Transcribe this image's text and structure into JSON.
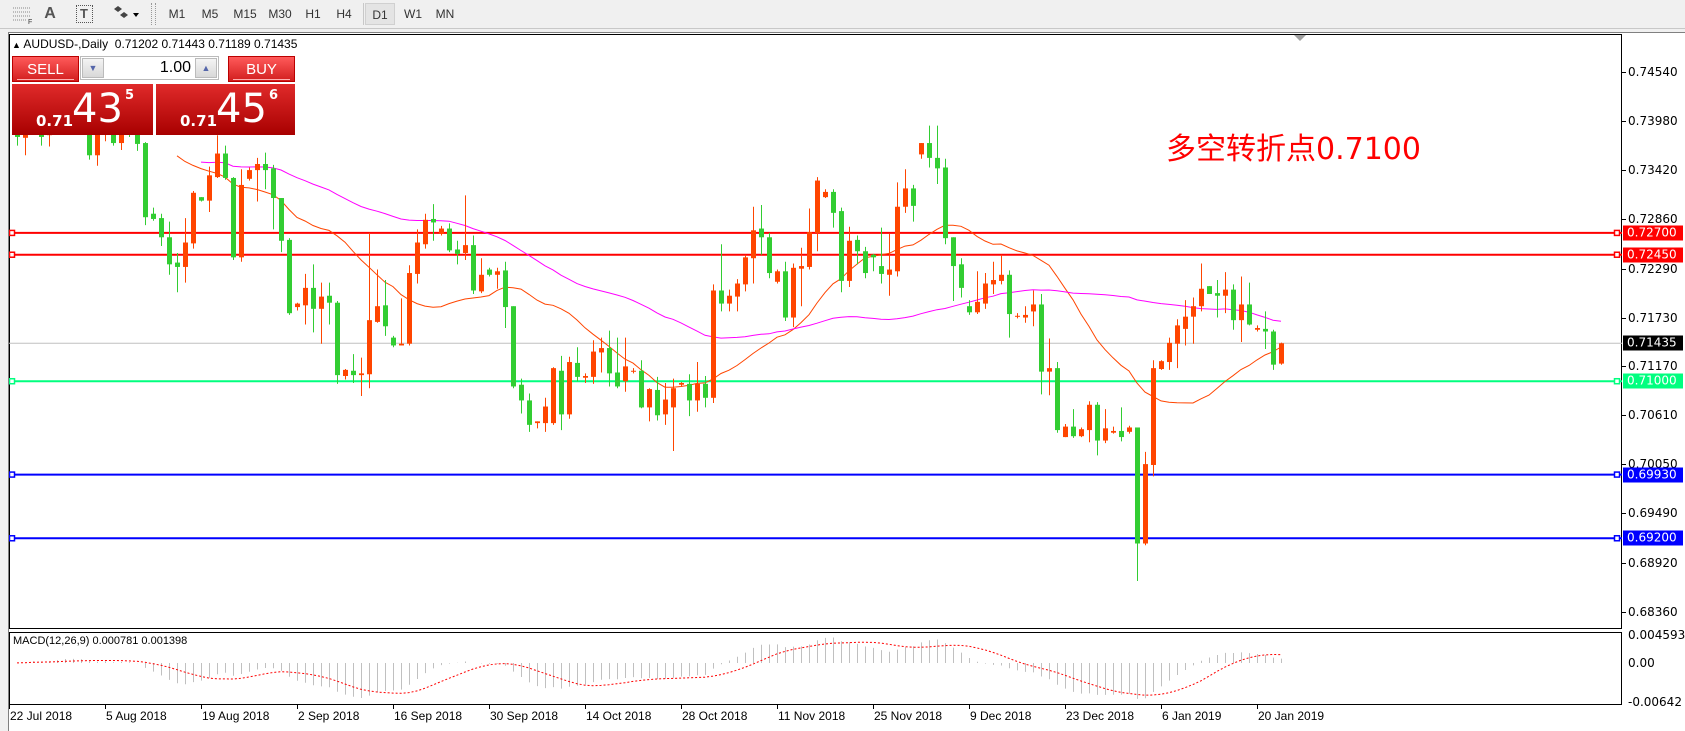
{
  "toolbar": {
    "tools": [
      {
        "icon": "fibonacci-retracement-icon"
      },
      {
        "icon": "text-icon",
        "label": "A"
      },
      {
        "icon": "text-label-icon",
        "label": "T"
      },
      {
        "icon": "arrows-icon"
      }
    ],
    "timeframes": [
      {
        "label": "M1"
      },
      {
        "label": "M5"
      },
      {
        "label": "M15"
      },
      {
        "label": "M30"
      },
      {
        "label": "H1"
      },
      {
        "label": "H4"
      },
      {
        "label": "D1",
        "active": true
      },
      {
        "label": "W1"
      },
      {
        "label": "MN"
      }
    ]
  },
  "header": {
    "symbol": "AUDUSD-,Daily",
    "ohlc": "0.71202 0.71443 0.71189 0.71435"
  },
  "trade_panel": {
    "sell_label": "SELL",
    "buy_label": "BUY",
    "lot": "1.00",
    "sell_price": {
      "prefix": "0.71",
      "big": "43",
      "sup": "5"
    },
    "buy_price": {
      "prefix": "0.71",
      "big": "45",
      "sup": "6"
    },
    "color": "#d21e1e"
  },
  "annotation": "多空转折点0.7100",
  "chart_data": {
    "type": "candlestick",
    "symbol": "AUDUSD-",
    "timeframe": "Daily",
    "ylim": [
      0.6816,
      0.7498
    ],
    "grid": false,
    "bull_color": "#ff4500",
    "bear_color": "#32cd32",
    "yticks": [
      "0.74540",
      "0.73980",
      "0.73420",
      "0.72860",
      "0.72290",
      "0.71730",
      "0.71170",
      "0.70610",
      "0.70050",
      "0.69490",
      "0.68920",
      "0.68360"
    ],
    "xticks": [
      "22 Jul 2018",
      "5 Aug 2018",
      "19 Aug 2018",
      "2 Sep 2018",
      "16 Sep 2018",
      "30 Sep 2018",
      "14 Oct 2018",
      "28 Oct 2018",
      "11 Nov 2018",
      "25 Nov 2018",
      "9 Dec 2018",
      "23 Dec 2018",
      "6 Jan 2019",
      "20 Jan 2019"
    ],
    "current_price": {
      "value": 0.71435,
      "label": "0.71435",
      "color": "#000000"
    },
    "hlines": [
      {
        "value": 0.727,
        "label": "0.72700",
        "color": "#ff0000"
      },
      {
        "value": 0.7245,
        "label": "0.72450",
        "color": "#ff0000"
      },
      {
        "value": 0.71,
        "label": "0.71000",
        "color": "#00ff7f"
      },
      {
        "value": 0.6993,
        "label": "0.69930",
        "color": "#0000ff"
      },
      {
        "value": 0.692,
        "label": "0.69200",
        "color": "#0000ff"
      }
    ],
    "moving_averages": [
      {
        "color": "#ff4500"
      },
      {
        "color": "#ff00ff"
      }
    ],
    "candles_ohlc": [
      [
        0.7392,
        0.74,
        0.737,
        0.738
      ],
      [
        0.7379,
        0.7398,
        0.7359,
        0.739
      ],
      [
        0.739,
        0.7415,
        0.7385,
        0.7405
      ],
      [
        0.7405,
        0.741,
        0.737,
        0.738
      ],
      [
        0.7382,
        0.74,
        0.7369,
        0.7395
      ],
      [
        0.7395,
        0.742,
        0.739,
        0.7412
      ],
      [
        0.7412,
        0.743,
        0.74,
        0.7418
      ],
      [
        0.7418,
        0.7428,
        0.7395,
        0.7402
      ],
      [
        0.7402,
        0.7412,
        0.7385,
        0.7395
      ],
      [
        0.7395,
        0.74,
        0.7354,
        0.7359
      ],
      [
        0.7359,
        0.739,
        0.7347,
        0.7385
      ],
      [
        0.7385,
        0.741,
        0.7375,
        0.74
      ],
      [
        0.74,
        0.7408,
        0.737,
        0.7373
      ],
      [
        0.7373,
        0.74,
        0.7365,
        0.7392
      ],
      [
        0.7392,
        0.7405,
        0.738,
        0.7385
      ],
      [
        0.7385,
        0.7392,
        0.7364,
        0.7372
      ],
      [
        0.7373,
        0.7374,
        0.7279,
        0.7288
      ],
      [
        0.7292,
        0.7299,
        0.7284,
        0.7286
      ],
      [
        0.7287,
        0.7292,
        0.7255,
        0.7265
      ],
      [
        0.7265,
        0.7283,
        0.7222,
        0.7234
      ],
      [
        0.7236,
        0.7247,
        0.7202,
        0.7231
      ],
      [
        0.7231,
        0.7287,
        0.7213,
        0.7259
      ],
      [
        0.7258,
        0.7318,
        0.7252,
        0.7316
      ],
      [
        0.7311,
        0.7311,
        0.7306,
        0.7307
      ],
      [
        0.7307,
        0.7346,
        0.7294,
        0.7336
      ],
      [
        0.7334,
        0.7382,
        0.7333,
        0.7361
      ],
      [
        0.7361,
        0.737,
        0.7331,
        0.7333
      ],
      [
        0.7333,
        0.7334,
        0.7239,
        0.7242
      ],
      [
        0.7242,
        0.7343,
        0.7237,
        0.7325
      ],
      [
        0.7332,
        0.7345,
        0.733,
        0.7342
      ],
      [
        0.7342,
        0.7356,
        0.7306,
        0.7349
      ],
      [
        0.7349,
        0.7362,
        0.732,
        0.7342
      ],
      [
        0.7344,
        0.7348,
        0.7274,
        0.731
      ],
      [
        0.731,
        0.731,
        0.7248,
        0.7261
      ],
      [
        0.7262,
        0.7264,
        0.7176,
        0.7178
      ],
      [
        0.7185,
        0.719,
        0.7181,
        0.7189
      ],
      [
        0.7187,
        0.7223,
        0.7165,
        0.7207
      ],
      [
        0.7207,
        0.7234,
        0.7156,
        0.7183
      ],
      [
        0.7183,
        0.7213,
        0.7143,
        0.7197
      ],
      [
        0.7198,
        0.7213,
        0.7165,
        0.719
      ],
      [
        0.719,
        0.7192,
        0.7097,
        0.7107
      ],
      [
        0.7106,
        0.7114,
        0.7102,
        0.7113
      ],
      [
        0.7112,
        0.7131,
        0.7098,
        0.7107
      ],
      [
        0.7107,
        0.7127,
        0.7083,
        0.7109
      ],
      [
        0.7108,
        0.727,
        0.7092,
        0.717
      ],
      [
        0.7168,
        0.7228,
        0.7167,
        0.7186
      ],
      [
        0.7187,
        0.7216,
        0.7152,
        0.7163
      ],
      [
        0.715,
        0.7152,
        0.7139,
        0.7141
      ],
      [
        0.7141,
        0.7195,
        0.7141,
        0.7143
      ],
      [
        0.7143,
        0.7233,
        0.7141,
        0.7224
      ],
      [
        0.7223,
        0.7274,
        0.7212,
        0.7259
      ],
      [
        0.7257,
        0.7292,
        0.7252,
        0.7285
      ],
      [
        0.7286,
        0.7303,
        0.7261,
        0.7282
      ],
      [
        0.7269,
        0.7278,
        0.7267,
        0.7275
      ],
      [
        0.7275,
        0.7281,
        0.7248,
        0.725
      ],
      [
        0.7251,
        0.7261,
        0.7234,
        0.7246
      ],
      [
        0.7247,
        0.7313,
        0.7239,
        0.7256
      ],
      [
        0.7256,
        0.7267,
        0.72,
        0.7204
      ],
      [
        0.7203,
        0.7241,
        0.7201,
        0.7222
      ],
      [
        0.7228,
        0.723,
        0.722,
        0.7222
      ],
      [
        0.7222,
        0.723,
        0.7206,
        0.7226
      ],
      [
        0.7227,
        0.7237,
        0.7161,
        0.7185
      ],
      [
        0.7186,
        0.7186,
        0.7092,
        0.7094
      ],
      [
        0.7096,
        0.7103,
        0.7063,
        0.7078
      ],
      [
        0.7078,
        0.7086,
        0.7042,
        0.705
      ],
      [
        0.7052,
        0.7054,
        0.7046,
        0.7054
      ],
      [
        0.7052,
        0.7081,
        0.7042,
        0.7071
      ],
      [
        0.7052,
        0.7116,
        0.705,
        0.7115
      ],
      [
        0.7112,
        0.7129,
        0.7044,
        0.7062
      ],
      [
        0.7062,
        0.7128,
        0.7057,
        0.7122
      ],
      [
        0.7121,
        0.7139,
        0.71,
        0.7105
      ],
      [
        0.7104,
        0.7109,
        0.7098,
        0.7106
      ],
      [
        0.7105,
        0.7147,
        0.7097,
        0.7134
      ],
      [
        0.7133,
        0.715,
        0.711,
        0.7138
      ],
      [
        0.7138,
        0.7158,
        0.7094,
        0.7109
      ],
      [
        0.711,
        0.715,
        0.7092,
        0.7094
      ],
      [
        0.71,
        0.715,
        0.7088,
        0.7117
      ],
      [
        0.7112,
        0.7115,
        0.7109,
        0.7112
      ],
      [
        0.7112,
        0.7124,
        0.7069,
        0.707
      ],
      [
        0.707,
        0.7092,
        0.7054,
        0.7091
      ],
      [
        0.709,
        0.7105,
        0.7055,
        0.7061
      ],
      [
        0.7062,
        0.7098,
        0.705,
        0.7079
      ],
      [
        0.707,
        0.7103,
        0.702,
        0.7092
      ],
      [
        0.7096,
        0.7099,
        0.7094,
        0.7098
      ],
      [
        0.7097,
        0.7108,
        0.706,
        0.7078
      ],
      [
        0.7078,
        0.7122,
        0.7065,
        0.7097
      ],
      [
        0.7097,
        0.7106,
        0.707,
        0.7081
      ],
      [
        0.7081,
        0.7211,
        0.7075,
        0.7204
      ],
      [
        0.7204,
        0.7257,
        0.718,
        0.7189
      ],
      [
        0.7189,
        0.7205,
        0.718,
        0.7198
      ],
      [
        0.7197,
        0.7217,
        0.718,
        0.7212
      ],
      [
        0.7211,
        0.7245,
        0.7203,
        0.7242
      ],
      [
        0.7241,
        0.73,
        0.7212,
        0.7273
      ],
      [
        0.7275,
        0.7302,
        0.7245,
        0.7265
      ],
      [
        0.7265,
        0.727,
        0.7218,
        0.7224
      ],
      [
        0.7214,
        0.7228,
        0.7212,
        0.7226
      ],
      [
        0.7226,
        0.7237,
        0.7169,
        0.7173
      ],
      [
        0.7173,
        0.7235,
        0.7162,
        0.723
      ],
      [
        0.7229,
        0.7253,
        0.7186,
        0.7232
      ],
      [
        0.7231,
        0.7298,
        0.7228,
        0.7271
      ],
      [
        0.727,
        0.7334,
        0.7249,
        0.733
      ],
      [
        0.7311,
        0.732,
        0.731,
        0.7317
      ],
      [
        0.7317,
        0.732,
        0.7276,
        0.7293
      ],
      [
        0.7295,
        0.7299,
        0.7202,
        0.7215
      ],
      [
        0.7215,
        0.7277,
        0.7208,
        0.7261
      ],
      [
        0.7262,
        0.7267,
        0.7234,
        0.7249
      ],
      [
        0.7249,
        0.7254,
        0.7218,
        0.7224
      ],
      [
        0.7245,
        0.7246,
        0.7226,
        0.7242
      ],
      [
        0.7232,
        0.7276,
        0.7212,
        0.7223
      ],
      [
        0.7222,
        0.7269,
        0.7198,
        0.7228
      ],
      [
        0.7226,
        0.7328,
        0.722,
        0.73
      ],
      [
        0.73,
        0.7343,
        0.7293,
        0.7321
      ],
      [
        0.7321,
        0.7325,
        0.7283,
        0.7301
      ],
      [
        0.736,
        0.7373,
        0.7355,
        0.7373
      ],
      [
        0.7373,
        0.7393,
        0.7345,
        0.7356
      ],
      [
        0.7356,
        0.7393,
        0.7326,
        0.7344
      ],
      [
        0.7345,
        0.7355,
        0.7257,
        0.7264
      ],
      [
        0.7265,
        0.7265,
        0.7192,
        0.7232
      ],
      [
        0.7234,
        0.7241,
        0.7196,
        0.7207
      ],
      [
        0.7186,
        0.7193,
        0.7176,
        0.7179
      ],
      [
        0.7179,
        0.7226,
        0.7177,
        0.7191
      ],
      [
        0.7189,
        0.7224,
        0.7183,
        0.7212
      ],
      [
        0.7211,
        0.7237,
        0.72,
        0.7216
      ],
      [
        0.7215,
        0.7245,
        0.7211,
        0.7222
      ],
      [
        0.7222,
        0.7227,
        0.715,
        0.7177
      ],
      [
        0.7175,
        0.7178,
        0.7172,
        0.7175
      ],
      [
        0.7173,
        0.7186,
        0.7167,
        0.7176
      ],
      [
        0.718,
        0.7204,
        0.7163,
        0.7188
      ],
      [
        0.7188,
        0.72,
        0.7085,
        0.7111
      ],
      [
        0.7111,
        0.7149,
        0.7084,
        0.7115
      ],
      [
        0.7115,
        0.7122,
        0.7041,
        0.7044
      ],
      [
        0.7036,
        0.7051,
        0.7036,
        0.7048
      ],
      [
        0.7048,
        0.7068,
        0.7035,
        0.7037
      ],
      [
        0.7037,
        0.7047,
        0.7036,
        0.7045
      ],
      [
        0.7044,
        0.7077,
        0.703,
        0.7073
      ],
      [
        0.7073,
        0.7076,
        0.7015,
        0.7032
      ],
      [
        0.7032,
        0.7068,
        0.7029,
        0.7046
      ],
      [
        0.7041,
        0.7048,
        0.704,
        0.7043
      ],
      [
        0.7043,
        0.707,
        0.7031,
        0.7036
      ],
      [
        0.7042,
        0.7049,
        0.704,
        0.7047
      ],
      [
        0.7047,
        0.7047,
        0.6871,
        0.6914
      ],
      [
        0.6914,
        0.7019,
        0.6912,
        0.7005
      ],
      [
        0.7004,
        0.7124,
        0.6991,
        0.7115
      ],
      [
        0.7114,
        0.7124,
        0.7113,
        0.7123
      ],
      [
        0.7122,
        0.715,
        0.7113,
        0.7144
      ],
      [
        0.7143,
        0.7171,
        0.7115,
        0.7164
      ],
      [
        0.716,
        0.7193,
        0.7141,
        0.7174
      ],
      [
        0.7174,
        0.7196,
        0.7143,
        0.7186
      ],
      [
        0.7186,
        0.7235,
        0.718,
        0.7206
      ],
      [
        0.7209,
        0.7209,
        0.72,
        0.72
      ],
      [
        0.7201,
        0.7216,
        0.7173,
        0.7198
      ],
      [
        0.7198,
        0.7225,
        0.7178,
        0.7205
      ],
      [
        0.7205,
        0.7211,
        0.7159,
        0.717
      ],
      [
        0.717,
        0.722,
        0.7145,
        0.7188
      ],
      [
        0.7188,
        0.7213,
        0.7164,
        0.7165
      ],
      [
        0.7159,
        0.7164,
        0.7157,
        0.7161
      ],
      [
        0.716,
        0.718,
        0.7137,
        0.7157
      ],
      [
        0.7157,
        0.7159,
        0.7113,
        0.7119
      ],
      [
        0.71202,
        0.71443,
        0.71189,
        0.71435
      ]
    ],
    "macd": {
      "label": "MACD(12,26,9) 0.000781 0.001398",
      "params": [
        12,
        26,
        9
      ],
      "main": 0.000781,
      "signal": 0.001398,
      "yticks": [
        "0.004593",
        "0.00",
        "-0.00642"
      ],
      "ylim": [
        -0.00642,
        0.004593
      ],
      "histogram_color": "#c0c0c0",
      "signal_color": "#ff0000"
    }
  }
}
